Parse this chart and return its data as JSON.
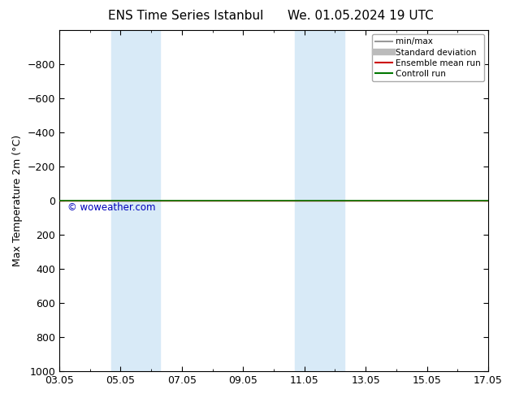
{
  "title_left": "ENS Time Series Istanbul",
  "title_right": "We. 01.05.2024 19 UTC",
  "ylabel": "Max Temperature 2m (°C)",
  "ylim_bottom": 1000,
  "ylim_top": -1000,
  "yticks": [
    -800,
    -600,
    -400,
    -200,
    0,
    200,
    400,
    600,
    800,
    1000
  ],
  "xlim_left": 0,
  "xlim_right": 14,
  "xtick_positions": [
    0,
    2,
    4,
    6,
    8,
    10,
    12,
    14
  ],
  "xtick_labels": [
    "03.05",
    "05.05",
    "07.05",
    "09.05",
    "11.05",
    "13.05",
    "15.05",
    "17.05"
  ],
  "shaded_bands": [
    {
      "x_start": 1.7,
      "x_end": 2.3
    },
    {
      "x_start": 2.3,
      "x_end": 3.3
    },
    {
      "x_start": 7.7,
      "x_end": 8.3
    },
    {
      "x_start": 8.3,
      "x_end": 9.3
    }
  ],
  "shade_color": "#d8eaf7",
  "lines": [
    {
      "y": 0,
      "color": "#cc0000",
      "linewidth": 1.0
    },
    {
      "y": 0,
      "color": "#007700",
      "linewidth": 1.2
    }
  ],
  "legend_items": [
    {
      "label": "min/max",
      "color": "#999999",
      "linewidth": 1.5
    },
    {
      "label": "Standard deviation",
      "color": "#bbbbbb",
      "linewidth": 6
    },
    {
      "label": "Ensemble mean run",
      "color": "#cc0000",
      "linewidth": 1.5
    },
    {
      "label": "Controll run",
      "color": "#007700",
      "linewidth": 1.5
    }
  ],
  "watermark": "© woweather.com",
  "watermark_color": "#0000bb",
  "background_color": "#ffffff",
  "title_fontsize": 11,
  "tick_fontsize": 9,
  "ylabel_fontsize": 9
}
